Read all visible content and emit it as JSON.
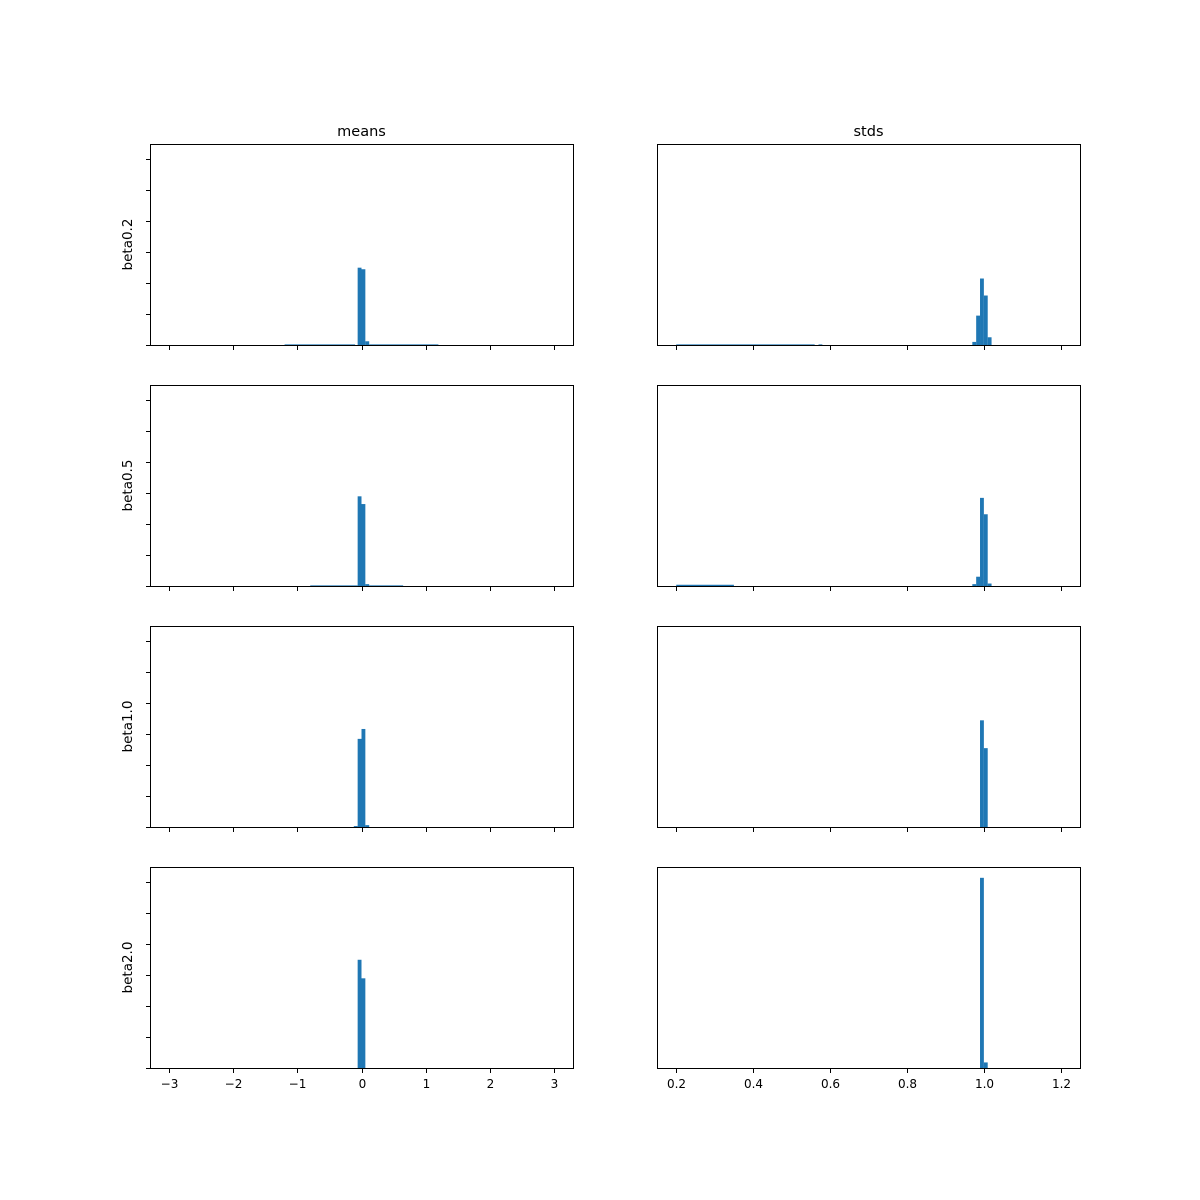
{
  "figure": {
    "column_titles": [
      "means",
      "stds"
    ],
    "row_labels": [
      "beta0.2",
      "beta0.5",
      "beta1.0",
      "beta2.0"
    ],
    "bar_color": "#1f77b4"
  },
  "chart_data": [
    {
      "type": "bar",
      "title": "means",
      "ylabel": "beta0.2",
      "xlim": [
        -3.3,
        3.3
      ],
      "ylim": [
        0,
        6.5
      ],
      "x_ticks": [
        "−3",
        "−2",
        "−1",
        "0",
        "1",
        "2",
        "3"
      ],
      "x_tick_values": [
        -3,
        -2,
        -1,
        0,
        1,
        2,
        3
      ],
      "show_xticklabels": false,
      "y_ticks": [
        0,
        1,
        2,
        3,
        4,
        5,
        6
      ],
      "bins": [
        {
          "x0": -1.2,
          "x1": -0.1,
          "h": 0.02
        },
        {
          "x0": -0.06,
          "x1": 0.0,
          "h": 2.5
        },
        {
          "x0": 0.0,
          "x1": 0.06,
          "h": 2.45
        },
        {
          "x0": 0.06,
          "x1": 0.12,
          "h": 0.12
        },
        {
          "x0": 0.12,
          "x1": 1.2,
          "h": 0.02
        }
      ]
    },
    {
      "type": "bar",
      "title": "stds",
      "ylabel": "",
      "xlim": [
        0.15,
        1.25
      ],
      "ylim": [
        0,
        6.5
      ],
      "x_ticks": [
        "0.2",
        "0.4",
        "0.6",
        "0.8",
        "1.0",
        "1.2"
      ],
      "x_tick_values": [
        0.2,
        0.4,
        0.6,
        0.8,
        1.0,
        1.2
      ],
      "show_xticklabels": false,
      "y_ticks": [],
      "bins": [
        {
          "x0": 0.2,
          "x1": 0.56,
          "h": 0.02
        },
        {
          "x0": 0.57,
          "x1": 0.58,
          "h": 0.02
        },
        {
          "x0": 0.97,
          "x1": 0.98,
          "h": 0.1
        },
        {
          "x0": 0.98,
          "x1": 0.99,
          "h": 0.95
        },
        {
          "x0": 0.99,
          "x1": 1.0,
          "h": 2.15
        },
        {
          "x0": 1.0,
          "x1": 1.01,
          "h": 1.6
        },
        {
          "x0": 1.01,
          "x1": 1.02,
          "h": 0.25
        }
      ]
    },
    {
      "type": "bar",
      "title": "",
      "ylabel": "beta0.5",
      "xlim": [
        -3.3,
        3.3
      ],
      "ylim": [
        0,
        6.5
      ],
      "x_ticks": [
        "−3",
        "−2",
        "−1",
        "0",
        "1",
        "2",
        "3"
      ],
      "x_tick_values": [
        -3,
        -2,
        -1,
        0,
        1,
        2,
        3
      ],
      "show_xticklabels": false,
      "y_ticks": [
        0,
        1,
        2,
        3,
        4,
        5,
        6
      ],
      "bins": [
        {
          "x0": -0.8,
          "x1": -0.06,
          "h": 0.02
        },
        {
          "x0": -0.06,
          "x1": 0.0,
          "h": 2.9
        },
        {
          "x0": 0.0,
          "x1": 0.06,
          "h": 2.65
        },
        {
          "x0": 0.06,
          "x1": 0.12,
          "h": 0.06
        },
        {
          "x0": 0.12,
          "x1": 0.65,
          "h": 0.02
        }
      ]
    },
    {
      "type": "bar",
      "title": "",
      "ylabel": "",
      "xlim": [
        0.15,
        1.25
      ],
      "ylim": [
        0,
        6.5
      ],
      "x_ticks": [
        "0.2",
        "0.4",
        "0.6",
        "0.8",
        "1.0",
        "1.2"
      ],
      "x_tick_values": [
        0.2,
        0.4,
        0.6,
        0.8,
        1.0,
        1.2
      ],
      "show_xticklabels": false,
      "y_ticks": [],
      "bins": [
        {
          "x0": 0.2,
          "x1": 0.35,
          "h": 0.04
        },
        {
          "x0": 0.97,
          "x1": 0.98,
          "h": 0.06
        },
        {
          "x0": 0.98,
          "x1": 0.99,
          "h": 0.3
        },
        {
          "x0": 0.99,
          "x1": 1.0,
          "h": 2.85
        },
        {
          "x0": 1.0,
          "x1": 1.01,
          "h": 2.32
        },
        {
          "x0": 1.01,
          "x1": 1.02,
          "h": 0.08
        }
      ]
    },
    {
      "type": "bar",
      "title": "",
      "ylabel": "beta1.0",
      "xlim": [
        -3.3,
        3.3
      ],
      "ylim": [
        0,
        6.5
      ],
      "x_ticks": [
        "−3",
        "−2",
        "−1",
        "0",
        "1",
        "2",
        "3"
      ],
      "x_tick_values": [
        -3,
        -2,
        -1,
        0,
        1,
        2,
        3
      ],
      "show_xticklabels": false,
      "y_ticks": [
        0,
        1,
        2,
        3,
        4,
        5,
        6
      ],
      "bins": [
        {
          "x0": -0.12,
          "x1": -0.06,
          "h": 0.03
        },
        {
          "x0": -0.06,
          "x1": 0.0,
          "h": 2.85
        },
        {
          "x0": 0.0,
          "x1": 0.06,
          "h": 3.17
        },
        {
          "x0": 0.06,
          "x1": 0.12,
          "h": 0.06
        }
      ]
    },
    {
      "type": "bar",
      "title": "",
      "ylabel": "",
      "xlim": [
        0.15,
        1.25
      ],
      "ylim": [
        0,
        6.5
      ],
      "x_ticks": [
        "0.2",
        "0.4",
        "0.6",
        "0.8",
        "1.0",
        "1.2"
      ],
      "x_tick_values": [
        0.2,
        0.4,
        0.6,
        0.8,
        1.0,
        1.2
      ],
      "show_xticklabels": false,
      "y_ticks": [],
      "bins": [
        {
          "x0": 0.99,
          "x1": 1.0,
          "h": 3.45
        },
        {
          "x0": 1.0,
          "x1": 1.01,
          "h": 2.55
        }
      ]
    },
    {
      "type": "bar",
      "title": "",
      "ylabel": "beta2.0",
      "xlim": [
        -3.3,
        3.3
      ],
      "ylim": [
        0,
        6.5
      ],
      "x_ticks": [
        "−3",
        "−2",
        "−1",
        "0",
        "1",
        "2",
        "3"
      ],
      "x_tick_values": [
        -3,
        -2,
        -1,
        0,
        1,
        2,
        3
      ],
      "show_xticklabels": true,
      "y_ticks": [
        0,
        1,
        2,
        3,
        4,
        5,
        6
      ],
      "bins": [
        {
          "x0": -0.06,
          "x1": 0.0,
          "h": 3.5
        },
        {
          "x0": 0.0,
          "x1": 0.06,
          "h": 2.9
        }
      ]
    },
    {
      "type": "bar",
      "title": "",
      "ylabel": "",
      "xlim": [
        0.15,
        1.25
      ],
      "ylim": [
        0,
        6.5
      ],
      "x_ticks": [
        "0.2",
        "0.4",
        "0.6",
        "0.8",
        "1.0",
        "1.2"
      ],
      "x_tick_values": [
        0.2,
        0.4,
        0.6,
        0.8,
        1.0,
        1.2
      ],
      "show_xticklabels": true,
      "y_ticks": [],
      "bins": [
        {
          "x0": 0.99,
          "x1": 1.0,
          "h": 6.15
        },
        {
          "x0": 1.0,
          "x1": 1.01,
          "h": 0.18
        }
      ]
    }
  ]
}
